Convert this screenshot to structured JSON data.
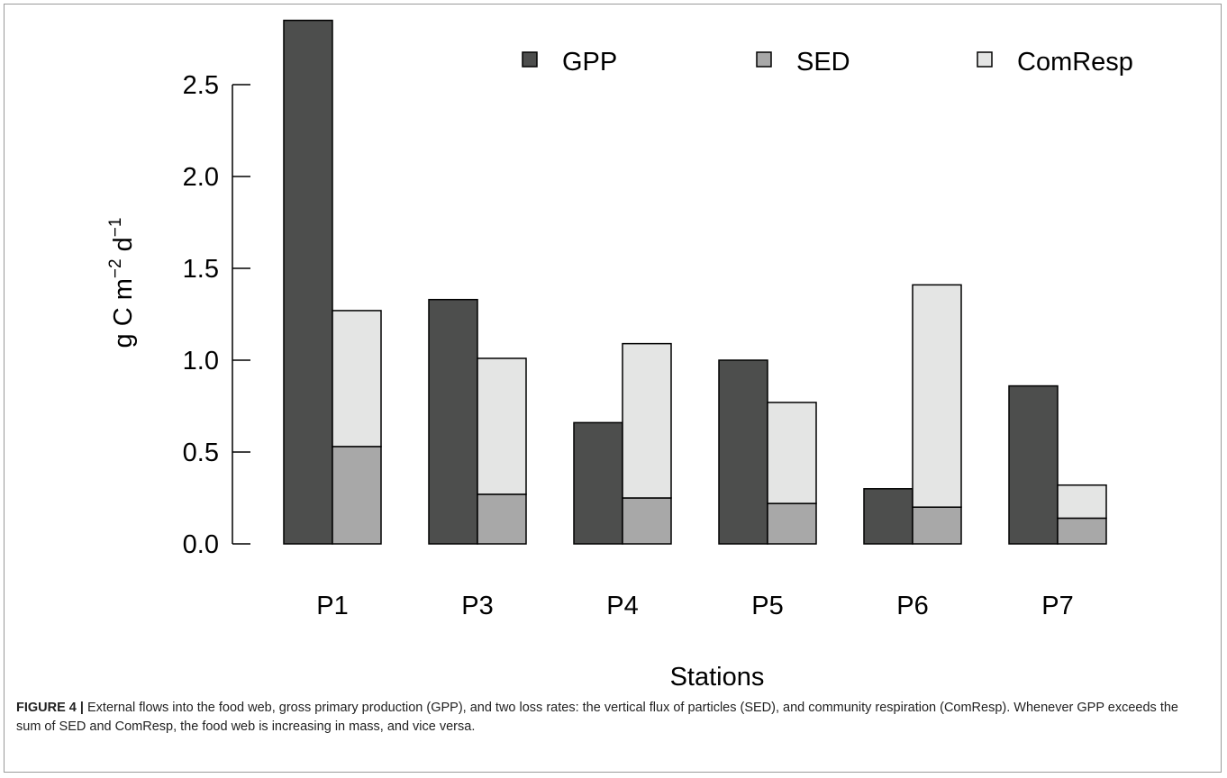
{
  "chart_data": {
    "type": "bar",
    "categories": [
      "P1",
      "P3",
      "P4",
      "P5",
      "P6",
      "P7"
    ],
    "series": [
      {
        "name": "GPP",
        "values": [
          2.85,
          1.33,
          0.66,
          1.0,
          0.3,
          0.86
        ]
      },
      {
        "name": "SED",
        "values": [
          0.53,
          0.27,
          0.25,
          0.22,
          0.2,
          0.14
        ],
        "stack": "loss"
      },
      {
        "name": "ComResp",
        "values": [
          0.74,
          0.74,
          0.84,
          0.55,
          1.21,
          0.18
        ],
        "stack": "loss"
      }
    ],
    "xlabel": "Stations",
    "ylabel": "g C m",
    "ylabel_sup1": "−2",
    "ylabel_mid": " d",
    "ylabel_sup2": "−1",
    "ylim": [
      0,
      2.85
    ],
    "yticks": [
      0.0,
      0.5,
      1.0,
      1.5,
      2.0,
      2.5
    ],
    "ytick_labels": [
      "0.0",
      "0.5",
      "1.0",
      "1.5",
      "2.0",
      "2.5"
    ],
    "legend_position": "top-right",
    "grid": false
  },
  "colors": {
    "GPP": "#4d4e4d",
    "SED": "#a8a8a8",
    "ComResp": "#e4e5e4",
    "stroke": "#000000"
  },
  "caption": {
    "label": "FIGURE 4 |",
    "text": " External flows into the food web, gross primary production (GPP), and two loss rates: the vertical flux of particles (SED), and community respiration (ComResp). Whenever GPP exceeds the sum of SED and ComResp, the food web is increasing in mass, and vice versa."
  }
}
